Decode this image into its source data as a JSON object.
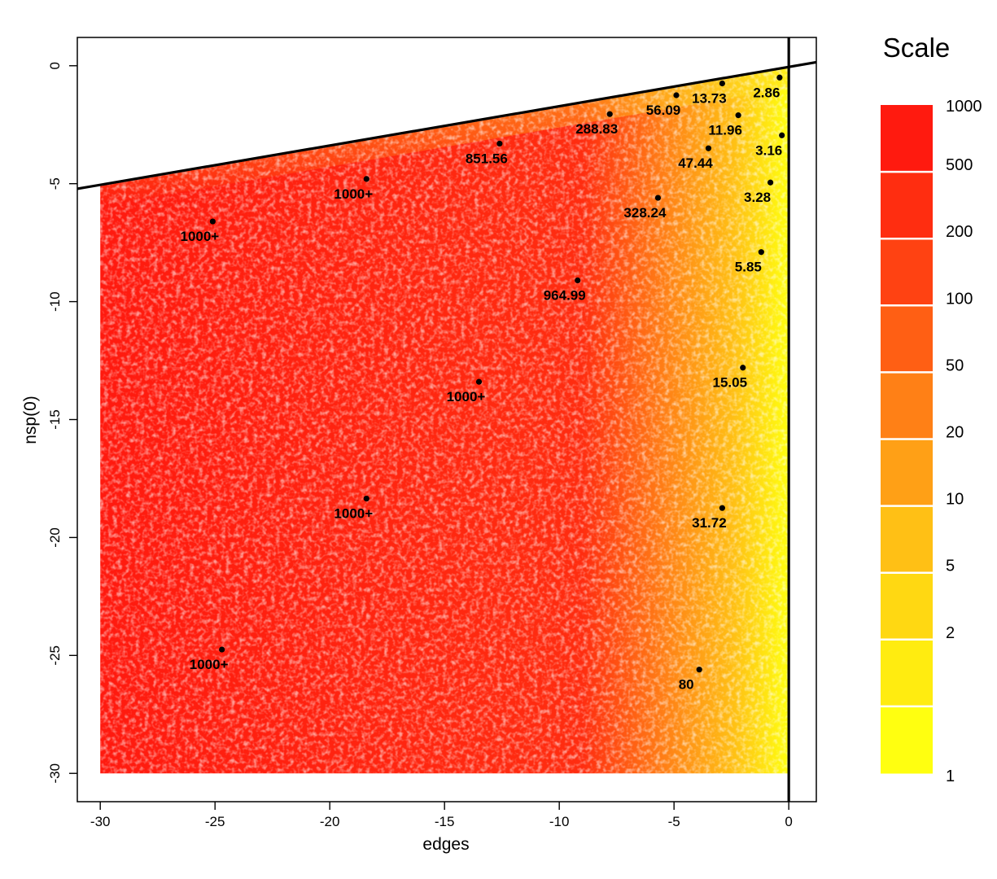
{
  "chart_data": {
    "type": "scatter",
    "xlabel": "edges",
    "ylabel": "nsp(0)",
    "xlim": [
      -31,
      1.2
    ],
    "ylim": [
      -31.2,
      1.2
    ],
    "x_ticks": [
      -30,
      -25,
      -20,
      -15,
      -10,
      -5,
      0
    ],
    "y_ticks": [
      0,
      -5,
      -10,
      -15,
      -20,
      -25,
      -30
    ],
    "grid": false,
    "boundary_lines": [
      {
        "type": "line",
        "from": [
          -30,
          -5.05
        ],
        "to": [
          0,
          -0.05
        ]
      },
      {
        "type": "vertical",
        "x": 0
      }
    ],
    "fill_region": {
      "x_range": [
        -30,
        0
      ],
      "y_min": -30,
      "upper_bound": "boundary line"
    },
    "color_gradient": {
      "low": "#ffff10",
      "high": "#ff1a0f"
    },
    "legend": {
      "title": "Scale",
      "placement": "right",
      "ticks": [
        "1000",
        "500",
        "200",
        "100",
        "50",
        "20",
        "10",
        "5",
        "2",
        "1"
      ],
      "colors": [
        "#ff1a0f",
        "#ff2d10",
        "#ff4212",
        "#ff5f14",
        "#ff8016",
        "#ffa016",
        "#ffc015",
        "#ffd812",
        "#ffec10",
        "#ffff10"
      ]
    },
    "points": [
      {
        "x": -0.4,
        "y": -0.5,
        "label": "2.86"
      },
      {
        "x": -2.9,
        "y": -0.75,
        "label": "13.73"
      },
      {
        "x": -4.9,
        "y": -1.25,
        "label": "56.09"
      },
      {
        "x": -2.2,
        "y": -2.1,
        "label": "11.96"
      },
      {
        "x": -7.8,
        "y": -2.05,
        "label": "288.83"
      },
      {
        "x": -0.3,
        "y": -2.95,
        "label": "3.16"
      },
      {
        "x": -12.6,
        "y": -3.3,
        "label": "851.56"
      },
      {
        "x": -3.5,
        "y": -3.5,
        "label": "47.44"
      },
      {
        "x": -18.4,
        "y": -4.8,
        "label": "1000+"
      },
      {
        "x": -0.8,
        "y": -4.95,
        "label": "3.28"
      },
      {
        "x": -5.7,
        "y": -5.6,
        "label": "328.24"
      },
      {
        "x": -25.1,
        "y": -6.6,
        "label": "1000+"
      },
      {
        "x": -1.2,
        "y": -7.9,
        "label": "5.85"
      },
      {
        "x": -9.2,
        "y": -9.1,
        "label": "964.99"
      },
      {
        "x": -2.0,
        "y": -12.8,
        "label": "15.05"
      },
      {
        "x": -13.5,
        "y": -13.4,
        "label": "1000+"
      },
      {
        "x": -18.4,
        "y": -18.35,
        "label": "1000+"
      },
      {
        "x": -2.9,
        "y": -18.75,
        "label": "31.72"
      },
      {
        "x": -24.7,
        "y": -24.75,
        "label": "1000+"
      },
      {
        "x": -3.9,
        "y": -25.6,
        "label": "80"
      }
    ]
  }
}
